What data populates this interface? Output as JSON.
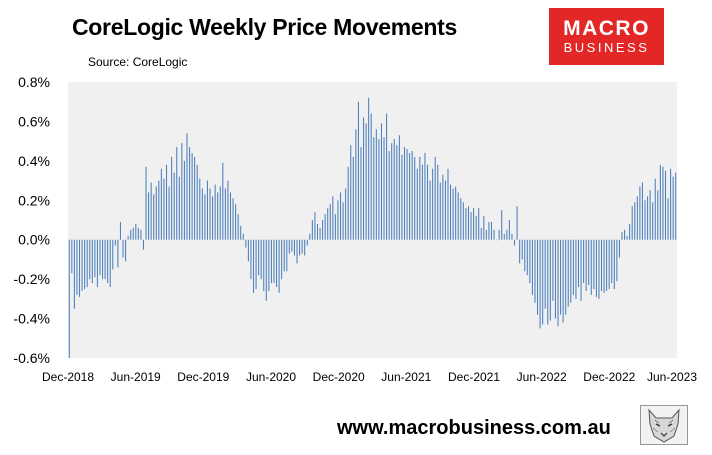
{
  "header": {
    "title": "CoreLogic Weekly Price Movements",
    "source": "Source: CoreLogic"
  },
  "logo": {
    "line1": "MACRO",
    "line2": "BUSINESS",
    "color": "#e32626"
  },
  "footer": {
    "url": "www.macrobusiness.com.au",
    "logo_icon": "wolf-icon"
  },
  "chart_data": {
    "type": "bar",
    "title": "CoreLogic Weekly Price Movements",
    "xlabel": "",
    "ylabel": "",
    "ylim": [
      -0.6,
      0.8
    ],
    "yticks": [
      "0.8%",
      "0.6%",
      "0.4%",
      "0.2%",
      "0.0%",
      "-0.2%",
      "-0.4%",
      "-0.6%"
    ],
    "ytick_values": [
      0.8,
      0.6,
      0.4,
      0.2,
      0.0,
      -0.2,
      -0.4,
      -0.6
    ],
    "xtick_labels": [
      "Dec-2018",
      "Jun-2019",
      "Dec-2019",
      "Jun-2020",
      "Dec-2020",
      "Jun-2021",
      "Dec-2021",
      "Jun-2022",
      "Dec-2022",
      "Jun-2023"
    ],
    "bar_color": "#4f81bd",
    "plot_background": "#f0f0f0",
    "grid": false,
    "values": [
      -0.6,
      -0.17,
      -0.35,
      -0.28,
      -0.29,
      -0.26,
      -0.25,
      -0.24,
      -0.2,
      -0.22,
      -0.19,
      -0.24,
      -0.18,
      -0.2,
      -0.2,
      -0.22,
      -0.24,
      -0.15,
      -0.03,
      -0.14,
      0.09,
      -0.09,
      -0.11,
      0.02,
      0.05,
      0.06,
      0.08,
      0.06,
      0.05,
      -0.05,
      0.37,
      0.24,
      0.29,
      0.23,
      0.27,
      0.3,
      0.36,
      0.31,
      0.38,
      0.27,
      0.42,
      0.34,
      0.47,
      0.32,
      0.49,
      0.4,
      0.54,
      0.47,
      0.44,
      0.42,
      0.38,
      0.31,
      0.26,
      0.23,
      0.3,
      0.26,
      0.22,
      0.28,
      0.24,
      0.27,
      0.39,
      0.26,
      0.3,
      0.24,
      0.21,
      0.18,
      0.13,
      0.07,
      0.03,
      -0.04,
      -0.11,
      -0.2,
      -0.27,
      -0.25,
      -0.18,
      -0.2,
      -0.26,
      -0.31,
      -0.26,
      -0.22,
      -0.22,
      -0.24,
      -0.27,
      -0.2,
      -0.16,
      -0.16,
      -0.07,
      -0.06,
      -0.08,
      -0.12,
      -0.08,
      -0.07,
      -0.08,
      -0.03,
      0.03,
      0.1,
      0.14,
      0.08,
      0.06,
      0.1,
      0.13,
      0.16,
      0.18,
      0.22,
      0.13,
      0.2,
      0.24,
      0.19,
      0.26,
      0.37,
      0.48,
      0.42,
      0.56,
      0.7,
      0.47,
      0.62,
      0.59,
      0.72,
      0.64,
      0.52,
      0.56,
      0.51,
      0.59,
      0.52,
      0.64,
      0.45,
      0.49,
      0.51,
      0.48,
      0.53,
      0.43,
      0.47,
      0.46,
      0.44,
      0.45,
      0.42,
      0.36,
      0.42,
      0.38,
      0.44,
      0.38,
      0.3,
      0.36,
      0.42,
      0.38,
      0.29,
      0.33,
      0.3,
      0.36,
      0.28,
      0.26,
      0.27,
      0.24,
      0.21,
      0.19,
      0.16,
      0.17,
      0.14,
      0.16,
      0.12,
      0.16,
      0.06,
      0.12,
      0.05,
      0.09,
      0.09,
      0.05,
      0.0,
      0.05,
      0.15,
      0.03,
      0.05,
      0.1,
      0.03,
      -0.03,
      0.17,
      -0.12,
      -0.1,
      -0.16,
      -0.18,
      -0.22,
      -0.28,
      -0.32,
      -0.38,
      -0.45,
      -0.43,
      -0.35,
      -0.43,
      -0.41,
      -0.31,
      -0.4,
      -0.44,
      -0.38,
      -0.42,
      -0.38,
      -0.34,
      -0.32,
      -0.28,
      -0.3,
      -0.24,
      -0.31,
      -0.22,
      -0.26,
      -0.23,
      -0.28,
      -0.25,
      -0.29,
      -0.3,
      -0.26,
      -0.27,
      -0.26,
      -0.25,
      -0.22,
      -0.25,
      -0.21,
      -0.09,
      0.04,
      0.05,
      0.02,
      0.08,
      0.17,
      0.19,
      0.22,
      0.27,
      0.29,
      0.2,
      0.22,
      0.25,
      0.19,
      0.31,
      0.25,
      0.38,
      0.37,
      0.35,
      0.21,
      0.36,
      0.32,
      0.34
    ]
  }
}
